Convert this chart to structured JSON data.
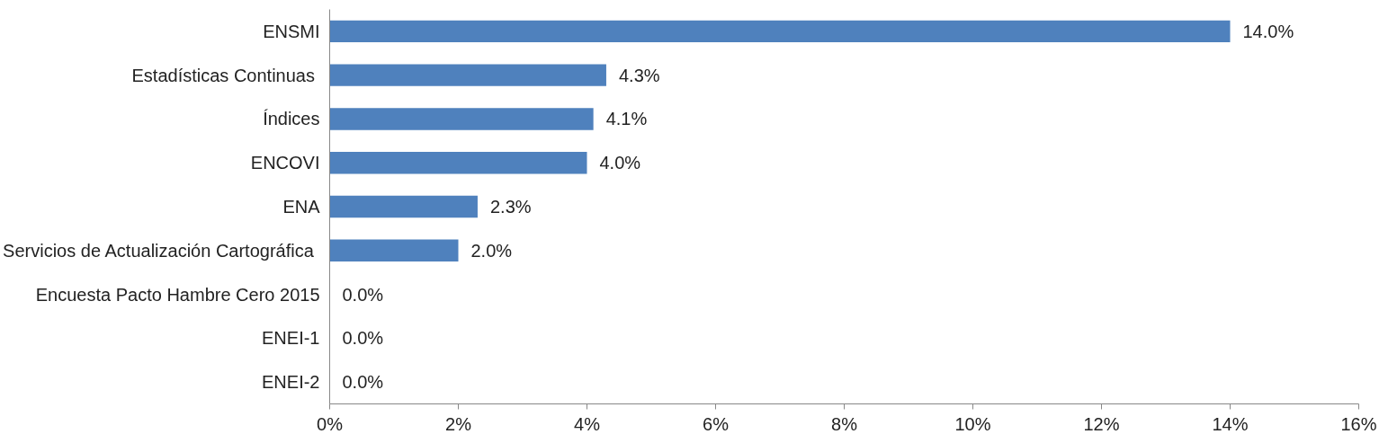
{
  "chart_data": {
    "type": "bar",
    "orientation": "horizontal",
    "categories": [
      "ENSMI",
      "Estadísticas  Continuas",
      "Índices",
      "ENCOVI",
      "ENA",
      "Servicios de Actualización  Cartográfica",
      "Encuesta Pacto Hambre Cero 2015",
      "ENEI-1",
      "ENEI-2"
    ],
    "values": [
      14.0,
      4.3,
      4.1,
      4.0,
      2.3,
      2.0,
      0.0,
      0.0,
      0.0
    ],
    "value_labels": [
      "14.0%",
      "4.3%",
      "4.1%",
      "4.0%",
      "2.3%",
      "2.0%",
      "0.0%",
      "0.0%",
      "0.0%"
    ],
    "color": "#4f81bd",
    "xlim": [
      0,
      16
    ],
    "xticks": [
      {
        "value": 0,
        "label": "0%"
      },
      {
        "value": 2,
        "label": "2%"
      },
      {
        "value": 4,
        "label": "4%"
      },
      {
        "value": 6,
        "label": "6%"
      },
      {
        "value": 8,
        "label": "8%"
      },
      {
        "value": 10,
        "label": "10%"
      },
      {
        "value": 12,
        "label": "12%"
      },
      {
        "value": 14,
        "label": "14%"
      },
      {
        "value": 16,
        "label": "16%"
      }
    ],
    "grid": false
  }
}
